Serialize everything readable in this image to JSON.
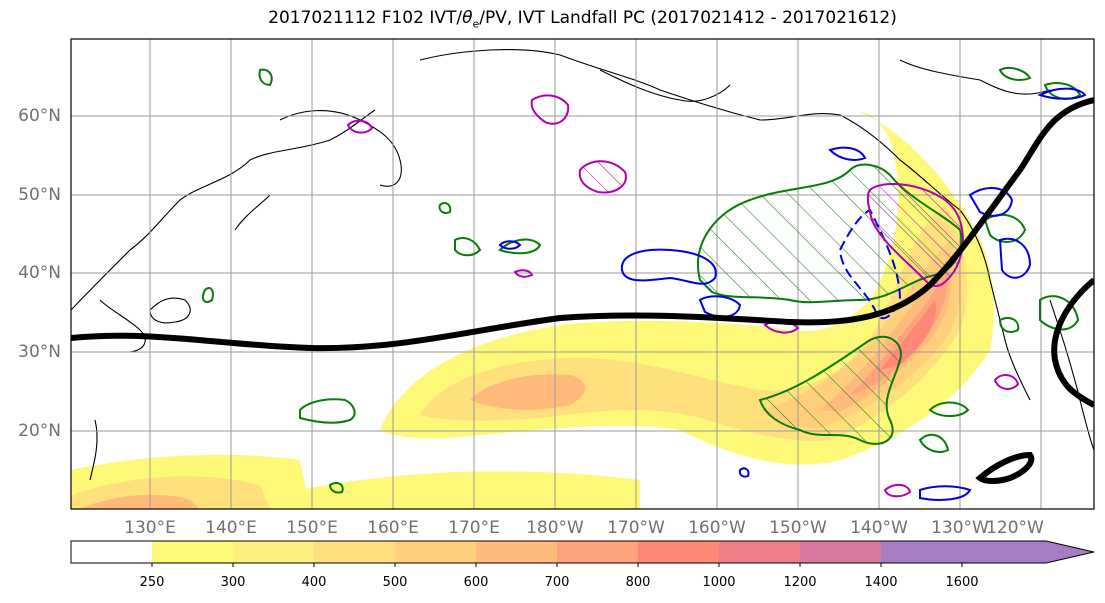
{
  "title": "2017021112 F102 IVT/θe/PV, IVT Landfall PC (2017021412 - 2017021612)",
  "title_parts": {
    "pre": "2017021112 F102 IVT/",
    "theta": "θ",
    "sub": "e",
    "post": "/PV, IVT Landfall PC (2017021412 - 2017021612)"
  },
  "lat_labels": [
    "60°N",
    "50°N",
    "40°N",
    "30°N",
    "20°N"
  ],
  "lon_labels": [
    "130°E",
    "140°E",
    "150°E",
    "160°E",
    "170°E",
    "180°W",
    "170°W",
    "160°W",
    "150°W",
    "140°W",
    "130°W",
    "120°W"
  ],
  "colorbar": {
    "ticks": [
      "250",
      "300",
      "400",
      "500",
      "600",
      "700",
      "800",
      "1000",
      "1200",
      "1400",
      "1600"
    ],
    "colors": [
      "#ffffff",
      "#fff97a",
      "#ffef7c",
      "#ffe07c",
      "#ffd07c",
      "#ffba7c",
      "#ffa37c",
      "#ff8878",
      "#f17d88",
      "#d779a0",
      "#a67dc3"
    ]
  },
  "colors": {
    "ivt_low": "#fff97a",
    "ivt_mid": "#ffd07c",
    "ivt_high": "#ff8878",
    "theta_contour": "#000000",
    "pv_contour": "#b000b0",
    "landfall_contour": "#0a7a0a",
    "negative_contour": "#0000e0",
    "grid": "#9a9a9a"
  }
}
